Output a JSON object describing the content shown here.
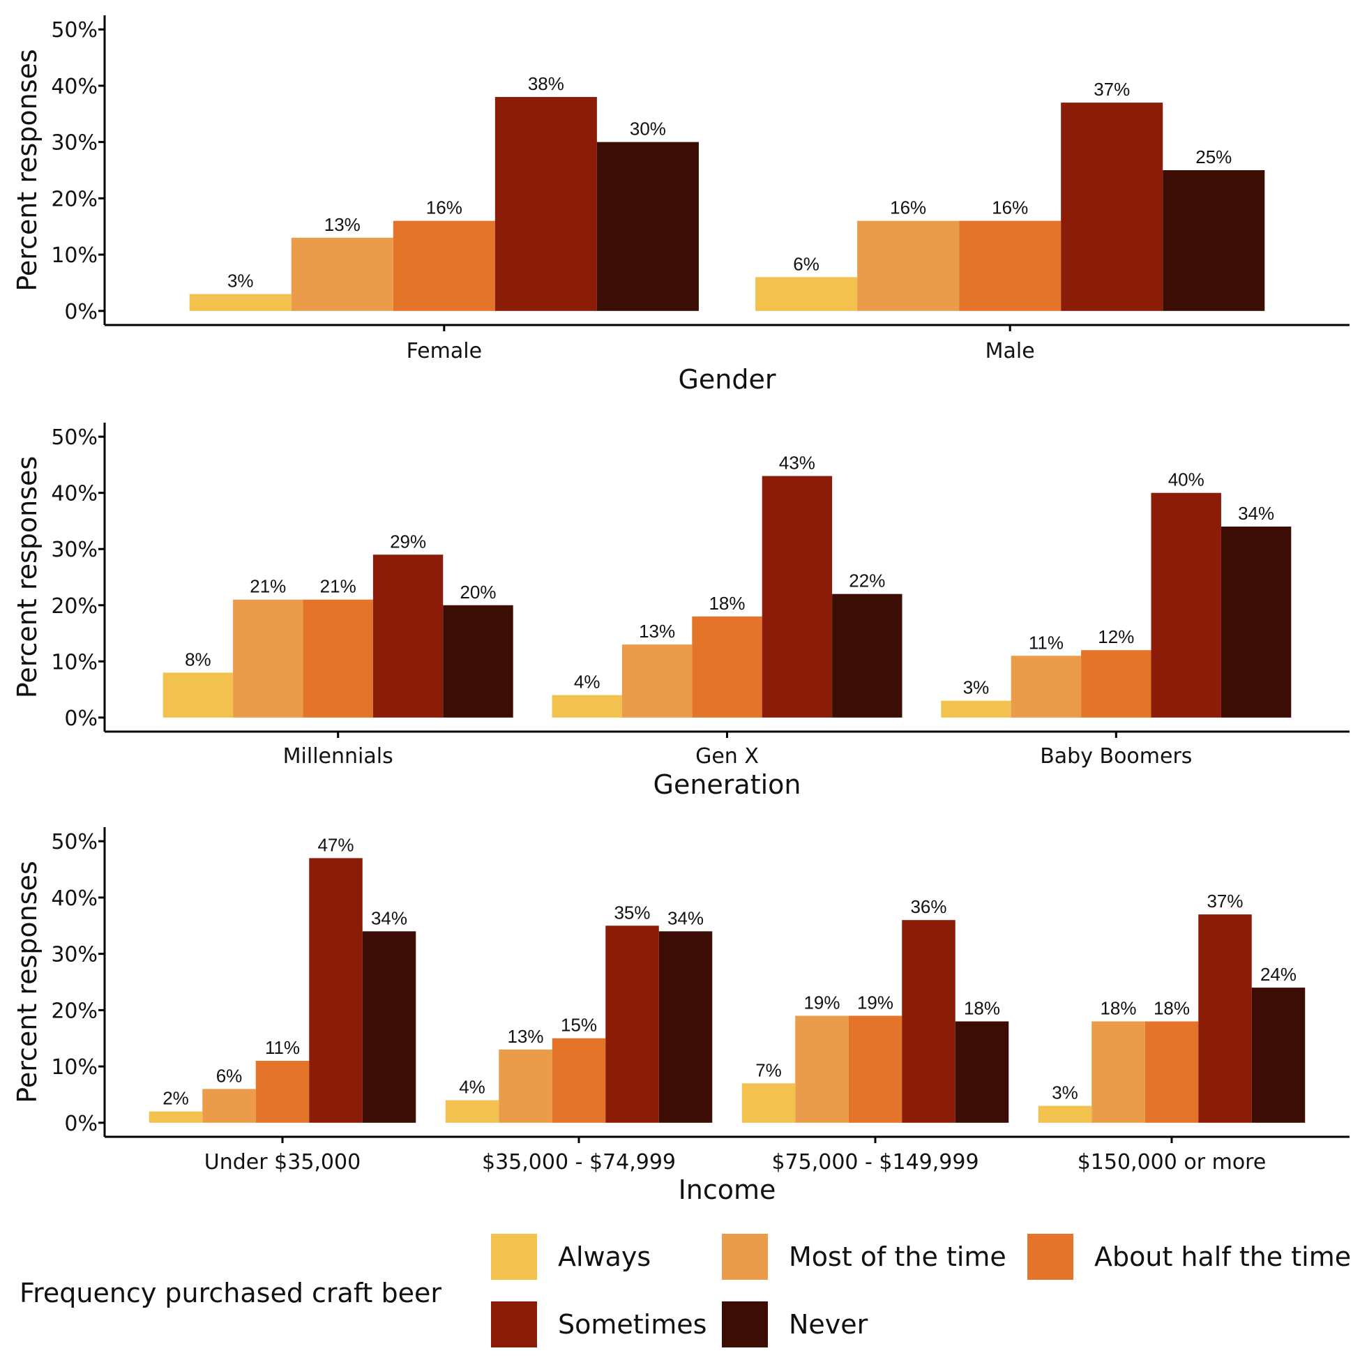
{
  "chart_data": [
    {
      "type": "bar",
      "x_label": "Gender",
      "y_label": "Percent responses",
      "categories": [
        "Female",
        "Male"
      ],
      "ylim": [
        -2.5,
        52.5
      ],
      "yticks": [
        {
          "value": 0,
          "label": "0%"
        },
        {
          "value": 10,
          "label": "10%"
        },
        {
          "value": 20,
          "label": "20%"
        },
        {
          "value": 30,
          "label": "30%"
        },
        {
          "value": 40,
          "label": "40%"
        },
        {
          "value": 50,
          "label": "50%"
        }
      ],
      "series": [
        {
          "color": "#f2c14e",
          "values": [
            3,
            6
          ],
          "value_labels": [
            "3%",
            "6%"
          ]
        },
        {
          "color": "#eb9c4b",
          "values": [
            13,
            16
          ],
          "value_labels": [
            "13%",
            "16%"
          ]
        },
        {
          "color": "#e4742a",
          "values": [
            16,
            16
          ],
          "value_labels": [
            "16%",
            "16%"
          ]
        },
        {
          "color": "#8b1c08",
          "values": [
            38,
            37
          ],
          "value_labels": [
            "38%",
            "37%"
          ]
        },
        {
          "color": "#3c0d04",
          "values": [
            30,
            25
          ],
          "value_labels": [
            "30%",
            "25%"
          ]
        }
      ]
    },
    {
      "type": "bar",
      "x_label": "Generation",
      "y_label": "Percent responses",
      "categories": [
        "Millennials",
        "Gen X",
        "Baby Boomers"
      ],
      "ylim": [
        -2.5,
        52.5
      ],
      "yticks": [
        {
          "value": 0,
          "label": "0%"
        },
        {
          "value": 10,
          "label": "10%"
        },
        {
          "value": 20,
          "label": "20%"
        },
        {
          "value": 30,
          "label": "30%"
        },
        {
          "value": 40,
          "label": "40%"
        },
        {
          "value": 50,
          "label": "50%"
        }
      ],
      "series": [
        {
          "color": "#f2c14e",
          "values": [
            8,
            4,
            3
          ],
          "value_labels": [
            "8%",
            "4%",
            "3%"
          ]
        },
        {
          "color": "#eb9c4b",
          "values": [
            21,
            13,
            11
          ],
          "value_labels": [
            "21%",
            "13%",
            "11%"
          ]
        },
        {
          "color": "#e4742a",
          "values": [
            21,
            18,
            12
          ],
          "value_labels": [
            "21%",
            "18%",
            "12%"
          ]
        },
        {
          "color": "#8b1c08",
          "values": [
            29,
            43,
            40
          ],
          "value_labels": [
            "29%",
            "43%",
            "40%"
          ]
        },
        {
          "color": "#3c0d04",
          "values": [
            20,
            22,
            34
          ],
          "value_labels": [
            "20%",
            "22%",
            "34%"
          ]
        }
      ]
    },
    {
      "type": "bar",
      "x_label": "Income",
      "y_label": "Percent responses",
      "categories": [
        "Under $35,000",
        "$35,000 - $74,999",
        "$75,000 - $149,999",
        "$150,000 or more"
      ],
      "ylim": [
        -2.5,
        52.5
      ],
      "yticks": [
        {
          "value": 0,
          "label": "0%"
        },
        {
          "value": 10,
          "label": "10%"
        },
        {
          "value": 20,
          "label": "20%"
        },
        {
          "value": 30,
          "label": "30%"
        },
        {
          "value": 40,
          "label": "40%"
        },
        {
          "value": 50,
          "label": "50%"
        }
      ],
      "legend_title": "Frequency purchased craft beer",
      "legend_position": "bottom",
      "series": [
        {
          "name": "Always",
          "color": "#f2c14e",
          "values": [
            2,
            4,
            7,
            3
          ],
          "value_labels": [
            "2%",
            "4%",
            "7%",
            "3%"
          ]
        },
        {
          "name": "Most of the time",
          "color": "#eb9c4b",
          "values": [
            6,
            13,
            19,
            18
          ],
          "value_labels": [
            "6%",
            "13%",
            "19%",
            "18%"
          ]
        },
        {
          "name": "About half the time",
          "color": "#e4742a",
          "values": [
            11,
            15,
            19,
            18
          ],
          "value_labels": [
            "11%",
            "15%",
            "19%",
            "18%"
          ]
        },
        {
          "name": "Sometimes",
          "color": "#8b1c08",
          "values": [
            47,
            35,
            36,
            37
          ],
          "value_labels": [
            "47%",
            "35%",
            "36%",
            "37%"
          ]
        },
        {
          "name": "Never",
          "color": "#3c0d04",
          "values": [
            34,
            34,
            18,
            24
          ],
          "value_labels": [
            "34%",
            "34%",
            "18%",
            "24%"
          ]
        }
      ]
    }
  ]
}
